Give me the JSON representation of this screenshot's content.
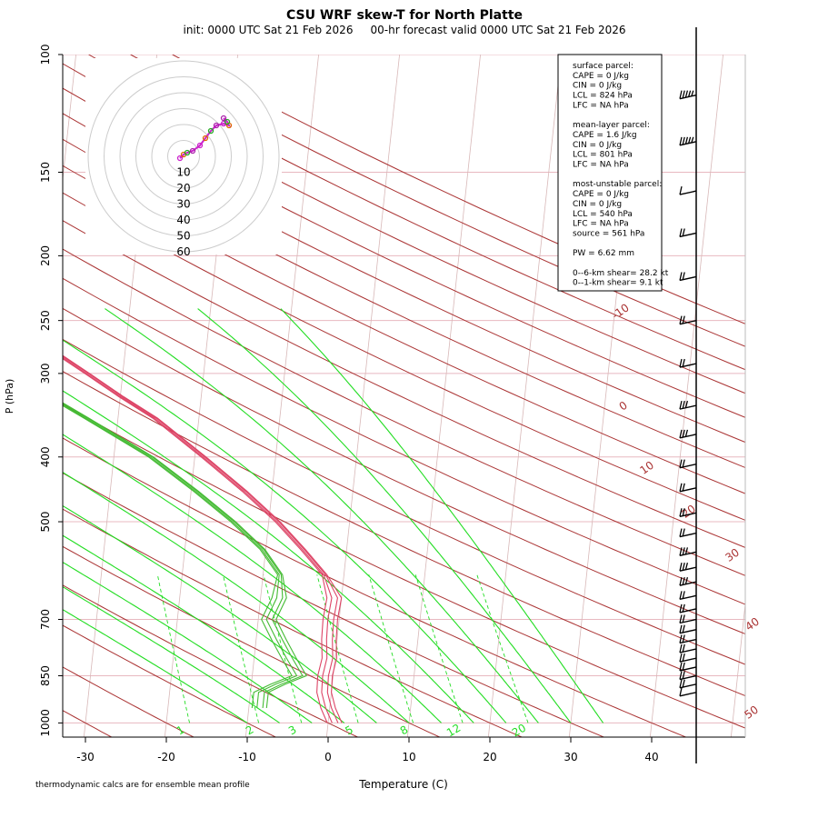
{
  "chart_data": {
    "type": "skew-t",
    "title": "CSU WRF skew-T for North Platte",
    "subtitle": "init: 0000 UTC Sat 21 Feb 2026     00-hr forecast valid 0000 UTC Sat 21 Feb 2026",
    "xlabel": "Temperature (C)",
    "ylabel": "P (hPa)",
    "footnote": "thermodynamic calcs are for ensemble mean profile",
    "x_ticks": [
      "-30",
      "-20",
      "-10",
      "0",
      "10",
      "20",
      "30",
      "40"
    ],
    "y_ticks": [
      "100",
      "150",
      "200",
      "250",
      "300",
      "400",
      "500",
      "700",
      "850",
      "1000"
    ],
    "isotherm_labels": [
      "-10",
      "0",
      "10",
      "20",
      "30",
      "40",
      "50"
    ],
    "mixing_ratio_labels": [
      "1",
      "2",
      "3",
      "5",
      "8",
      "12",
      "20"
    ],
    "hodograph_ring_labels": [
      "10",
      "20",
      "30",
      "40",
      "50",
      "60"
    ],
    "temperature_profile": [
      {
        "p": 1000,
        "t": 0.5
      },
      {
        "p": 950,
        "t": -0.5
      },
      {
        "p": 900,
        "t": -1.2
      },
      {
        "p": 850,
        "t": -1.3
      },
      {
        "p": 800,
        "t": -1.0
      },
      {
        "p": 750,
        "t": -1.3
      },
      {
        "p": 700,
        "t": -1.4
      },
      {
        "p": 650,
        "t": -1.2
      },
      {
        "p": 600,
        "t": -2.5
      },
      {
        "p": 550,
        "t": -5.5
      },
      {
        "p": 500,
        "t": -9.0
      },
      {
        "p": 450,
        "t": -13.5
      },
      {
        "p": 400,
        "t": -19.0
      },
      {
        "p": 350,
        "t": -25.5
      },
      {
        "p": 325,
        "t": -30.0
      },
      {
        "p": 300,
        "t": -34.5
      },
      {
        "p": 280,
        "t": -38.5
      },
      {
        "p": 250,
        "t": -45.5
      },
      {
        "p": 220,
        "t": -51.5
      },
      {
        "p": 200,
        "t": -55.5
      },
      {
        "p": 175,
        "t": -57.5
      },
      {
        "p": 150,
        "t": -59.0
      },
      {
        "p": 125,
        "t": -60.5
      },
      {
        "p": 110,
        "t": -61.5
      }
    ],
    "dewpoint_profile": [
      {
        "p": 950,
        "t": -9.0
      },
      {
        "p": 900,
        "t": -9.0
      },
      {
        "p": 875,
        "t": -7.0
      },
      {
        "p": 850,
        "t": -4.5
      },
      {
        "p": 800,
        "t": -6.0
      },
      {
        "p": 750,
        "t": -7.5
      },
      {
        "p": 700,
        "t": -9.0
      },
      {
        "p": 650,
        "t": -8.0
      },
      {
        "p": 600,
        "t": -8.0
      },
      {
        "p": 550,
        "t": -10.5
      },
      {
        "p": 500,
        "t": -14.5
      },
      {
        "p": 450,
        "t": -19.5
      },
      {
        "p": 400,
        "t": -25.5
      },
      {
        "p": 350,
        "t": -34.0
      },
      {
        "p": 300,
        "t": -44.0
      },
      {
        "p": 275,
        "t": -52.0
      },
      {
        "p": 250,
        "t": -57.0
      },
      {
        "p": 225,
        "t": -65.5
      },
      {
        "p": 200,
        "t": -70.0
      },
      {
        "p": 180,
        "t": -70.0
      }
    ],
    "hodograph_points": [
      {
        "u": -2.0,
        "v": -1.0
      },
      {
        "u": 0.0,
        "v": 1.0
      },
      {
        "u": 2.0,
        "v": 2.0
      },
      {
        "u": 5.0,
        "v": 3.0
      },
      {
        "u": 9.0,
        "v": 6.0
      },
      {
        "u": 12.0,
        "v": 10.0
      },
      {
        "u": 15.0,
        "v": 14.0
      },
      {
        "u": 18.0,
        "v": 17.0
      },
      {
        "u": 22.0,
        "v": 18.0
      },
      {
        "u": 25.0,
        "v": 17.0
      },
      {
        "u": 24.0,
        "v": 19.0
      },
      {
        "u": 22.0,
        "v": 21.0
      }
    ],
    "wind_barbs": [
      {
        "p": 115,
        "ws": 55
      },
      {
        "p": 135,
        "ws": 55
      },
      {
        "p": 160,
        "ws": 10
      },
      {
        "p": 185,
        "ws": 15
      },
      {
        "p": 215,
        "ws": 15
      },
      {
        "p": 250,
        "ws": 15
      },
      {
        "p": 290,
        "ws": 20
      },
      {
        "p": 335,
        "ws": 25
      },
      {
        "p": 370,
        "ws": 25
      },
      {
        "p": 410,
        "ws": 20
      },
      {
        "p": 445,
        "ws": 15
      },
      {
        "p": 485,
        "ws": 20
      },
      {
        "p": 520,
        "ws": 20
      },
      {
        "p": 555,
        "ws": 25
      },
      {
        "p": 585,
        "ws": 25
      },
      {
        "p": 615,
        "ws": 25
      },
      {
        "p": 645,
        "ws": 20
      },
      {
        "p": 675,
        "ws": 15
      },
      {
        "p": 700,
        "ws": 15
      },
      {
        "p": 725,
        "ws": 15
      },
      {
        "p": 750,
        "ws": 15
      },
      {
        "p": 775,
        "ws": 15
      },
      {
        "p": 800,
        "ws": 15
      },
      {
        "p": 825,
        "ws": 15
      },
      {
        "p": 850,
        "ws": 15
      },
      {
        "p": 875,
        "ws": 15
      },
      {
        "p": 900,
        "ws": 10
      }
    ],
    "colors": {
      "temperature": "#dd4466",
      "dewpoint": "#44bb33",
      "dry_adiabat": "#aa3333",
      "moist_adiabat": "#22dd22",
      "mixing_ratio": "#22dd22",
      "isobar": "#e8b8c0",
      "isotherm": "#d8b8b8"
    }
  },
  "info": {
    "lines": [
      "surface parcel:",
      "CAPE = 0 J/kg",
      "CIN = 0 J/kg",
      "LCL = 824 hPa",
      "LFC = NA hPa",
      "",
      "mean-layer parcel:",
      "CAPE = 1.6 J/kg",
      "CIN = 0 J/kg",
      "LCL = 801 hPa",
      "LFC = NA hPa",
      "",
      "most-unstable parcel:",
      "CAPE = 0 J/kg",
      "CIN = 0 J/kg",
      "LCL = 540 hPa",
      "LFC = NA hPa",
      "source = 561 hPa",
      "",
      "PW =  6.62 mm",
      "",
      "0--6-km shear= 28.2 kt",
      "0--1-km shear= 9.1 kt"
    ]
  }
}
